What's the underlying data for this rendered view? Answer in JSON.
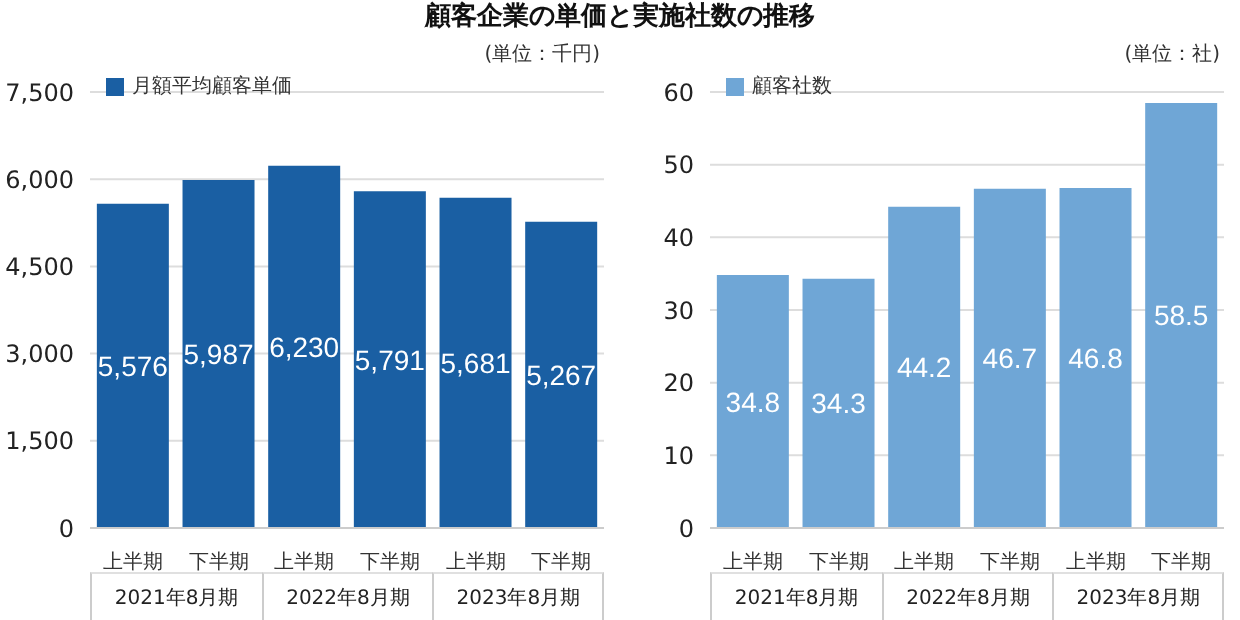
{
  "chart_data": [
    {
      "type": "bar",
      "title": "顧客企業の単価と実施社数の推移",
      "categories": [
        "上半期",
        "下半期",
        "上半期",
        "下半期",
        "上半期",
        "下半期"
      ],
      "series": [
        {
          "name": "月額平均顧客単価",
          "color": "#1a5fa3",
          "values": [
            5576,
            5987,
            6230,
            5791,
            5681,
            5267
          ],
          "value_labels": [
            "5,576",
            "5,987",
            "6,230",
            "5,791",
            "5,681",
            "5,267"
          ]
        }
      ],
      "ylim": [
        0,
        7500
      ],
      "yticks": [
        {
          "value": 0,
          "label": "0"
        },
        {
          "value": 1500,
          "label": "1,500"
        },
        {
          "value": 3000,
          "label": "3,000"
        },
        {
          "value": 4500,
          "label": "4,500"
        },
        {
          "value": 6000,
          "label": "6,000"
        },
        {
          "value": 7500,
          "label": "7,500"
        }
      ],
      "grid": "y",
      "legend": "top left",
      "annotations": [
        "(単位：千円)",
        "2021年8月期",
        "2022年8月期",
        "2023年8月期"
      ]
    },
    {
      "type": "bar",
      "categories": [
        "上半期",
        "下半期",
        "上半期",
        "下半期",
        "上半期",
        "下半期"
      ],
      "series": [
        {
          "name": "顧客社数",
          "color": "#6fa6d6",
          "values": [
            34.8,
            34.3,
            44.2,
            46.7,
            46.8,
            58.5
          ]
        }
      ],
      "ylim": [
        0,
        60
      ],
      "yticks": [
        0,
        10,
        20,
        30,
        40,
        50,
        60
      ],
      "grid": "y",
      "legend": "top left",
      "data_labels": true,
      "annotations": [
        "(単位：社)",
        "2021年8月期",
        "2022年8月期",
        "2023年8月期"
      ]
    }
  ]
}
